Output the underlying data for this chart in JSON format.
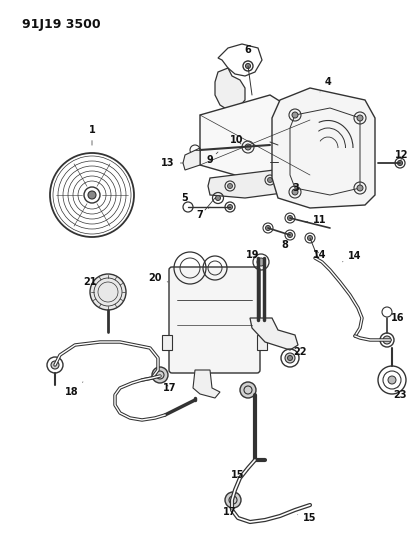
{
  "title": "91J19 3500",
  "bg_color": "#ffffff",
  "line_color": "#333333",
  "text_color": "#111111",
  "label_fontsize": 7.0,
  "figsize": [
    4.1,
    5.33
  ],
  "dpi": 100
}
